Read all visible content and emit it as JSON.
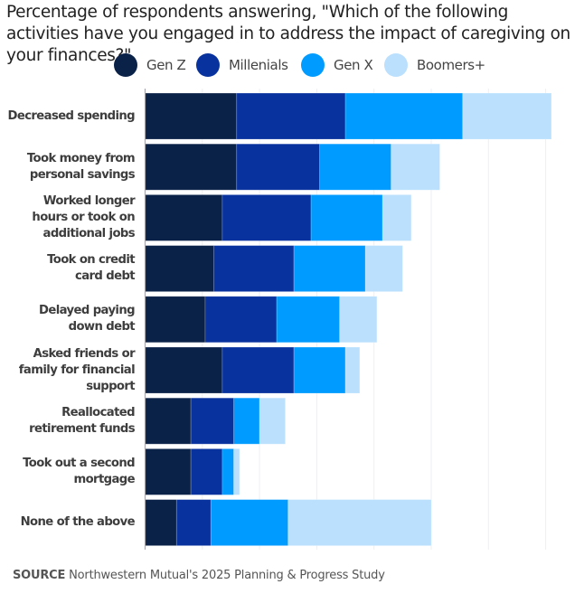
{
  "chart_data": {
    "type": "bar",
    "orientation": "horizontal",
    "stacked": true,
    "title": "Percentage of respondents answering, \"Which of the following activities have you engaged in to address the impact of caregiving on your finances?\"",
    "xlabel": "",
    "ylabel": "",
    "xlim": [
      0,
      70
    ],
    "grid": true,
    "legend_position": "top-center",
    "categories": [
      "Decreased spending",
      "Took money from personal savings",
      "Worked longer hours or took on additional jobs",
      "Took on credit card debt",
      "Delayed paying down debt",
      "Asked friends or family for financial support",
      "Reallocated retirement funds",
      "Took out a second mortgage",
      "None of the above"
    ],
    "category_lines": [
      [
        "Decreased spending"
      ],
      [
        "Took money from",
        "personal savings"
      ],
      [
        "Worked longer",
        "hours or took on",
        "additional jobs"
      ],
      [
        "Took on credit",
        "card debt"
      ],
      [
        "Delayed paying",
        "down debt"
      ],
      [
        "Asked friends or",
        "family for financial",
        "support"
      ],
      [
        "Reallocated",
        "retirement funds"
      ],
      [
        "Took out a second",
        "mortgage"
      ],
      [
        "None of the above"
      ]
    ],
    "series": [
      {
        "name": "Gen Z",
        "color": "#0b2248",
        "values": [
          16,
          16,
          13.5,
          12,
          10.5,
          13.5,
          8,
          8,
          5.5
        ]
      },
      {
        "name": "Millenials",
        "color": "#08329e",
        "values": [
          19,
          14.5,
          15.5,
          14,
          12.5,
          12.5,
          7.5,
          5.5,
          6
        ]
      },
      {
        "name": "Gen X",
        "color": "#009bff",
        "values": [
          20.5,
          12.5,
          12.5,
          12.5,
          11,
          9,
          4.5,
          2,
          13.5
        ]
      },
      {
        "name": "Boomers+",
        "color": "#bae0fe",
        "values": [
          15.5,
          8.5,
          5,
          6.5,
          6.5,
          2.5,
          4.5,
          1,
          25
        ]
      }
    ]
  },
  "source": {
    "label": "SOURCE",
    "text": "Northwestern Mutual's 2025 Planning & Progress Study"
  }
}
